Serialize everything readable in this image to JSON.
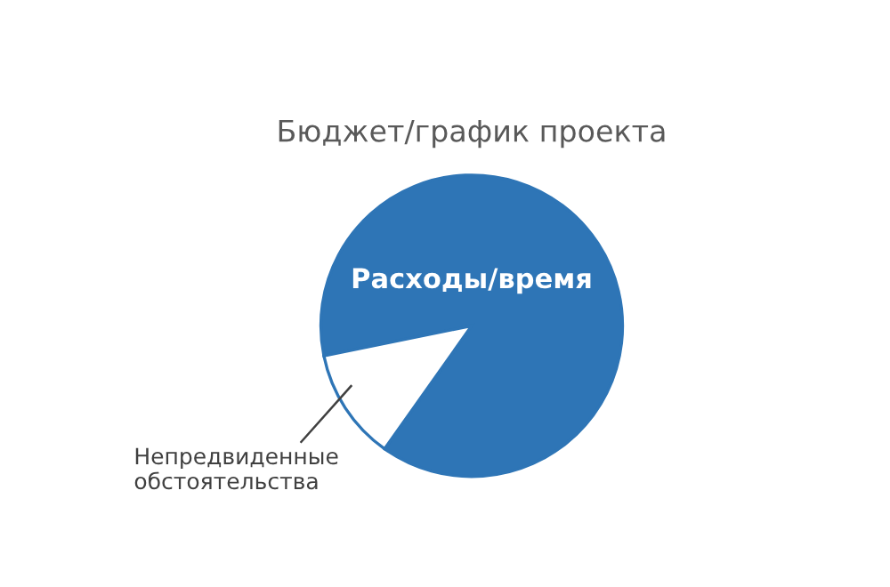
{
  "chart_data": {
    "type": "pie",
    "title": "Бюджет/график проекта",
    "categories": [
      "Расходы/время",
      "Непредвиденные обстоятельства"
    ],
    "values": [
      88,
      12
    ],
    "colors": [
      "#2e75b6",
      "#ffffff"
    ]
  }
}
